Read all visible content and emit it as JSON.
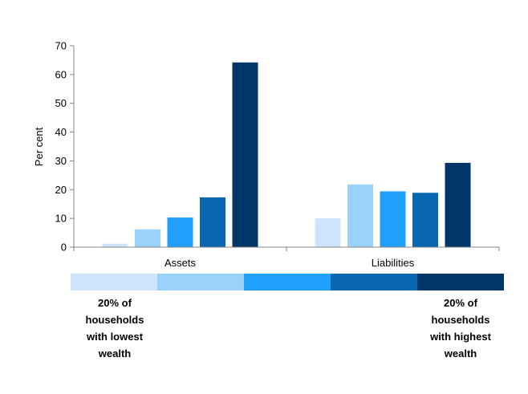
{
  "chart_data": {
    "type": "bar",
    "ylabel": "Per cent",
    "ylim": [
      0,
      70
    ],
    "yticks": [
      0,
      10,
      20,
      30,
      40,
      50,
      60,
      70
    ],
    "grid": false,
    "categories": [
      "Assets",
      "Liabilities"
    ],
    "series": [
      {
        "color": "#cfe4fb",
        "values": [
          1.2,
          10
        ]
      },
      {
        "color": "#99d3fb",
        "values": [
          6.2,
          21.8
        ]
      },
      {
        "color": "#21a0fb",
        "values": [
          10.3,
          19.4
        ]
      },
      {
        "color": "#0867b0",
        "values": [
          17.3,
          18.9
        ]
      },
      {
        "color": "#003768",
        "values": [
          64.2,
          29.3
        ]
      }
    ]
  },
  "legend": {
    "colors": [
      "#cfe4fb",
      "#99d3fb",
      "#21a0fb",
      "#0867b0",
      "#003768"
    ],
    "left_note": "20% of\nhouseholds\nwith lowest\nwealth",
    "right_note": "20% of\nhouseholds\nwith highest\nwealth"
  }
}
